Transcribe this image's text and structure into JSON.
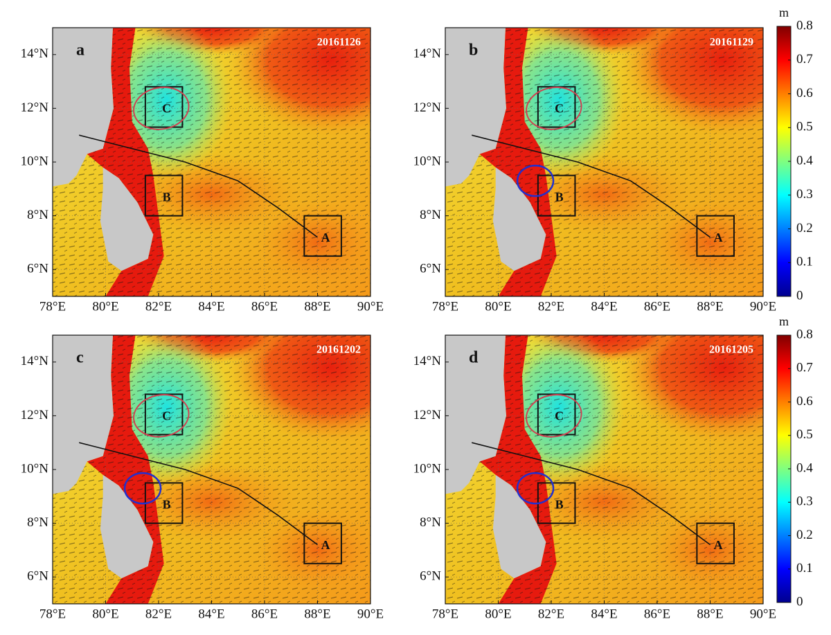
{
  "panels": [
    {
      "letter": "a",
      "date": "20161126"
    },
    {
      "letter": "b",
      "date": "20161129"
    },
    {
      "letter": "c",
      "date": "20161202"
    },
    {
      "letter": "d",
      "date": "20161205"
    }
  ],
  "x_ticks": [
    "78°E",
    "80°E",
    "82°E",
    "84°E",
    "86°E",
    "88°E",
    "90°E"
  ],
  "y_ticks": [
    "6°N",
    "8°N",
    "10°N",
    "12°N",
    "14°N"
  ],
  "boxes": [
    "A",
    "B",
    "C"
  ],
  "colorbar": {
    "unit": "m",
    "range": [
      0,
      0.8
    ],
    "ticks": [
      0,
      0.1,
      0.2,
      0.3,
      0.4,
      0.5,
      0.6,
      0.7,
      0.8
    ]
  }
}
